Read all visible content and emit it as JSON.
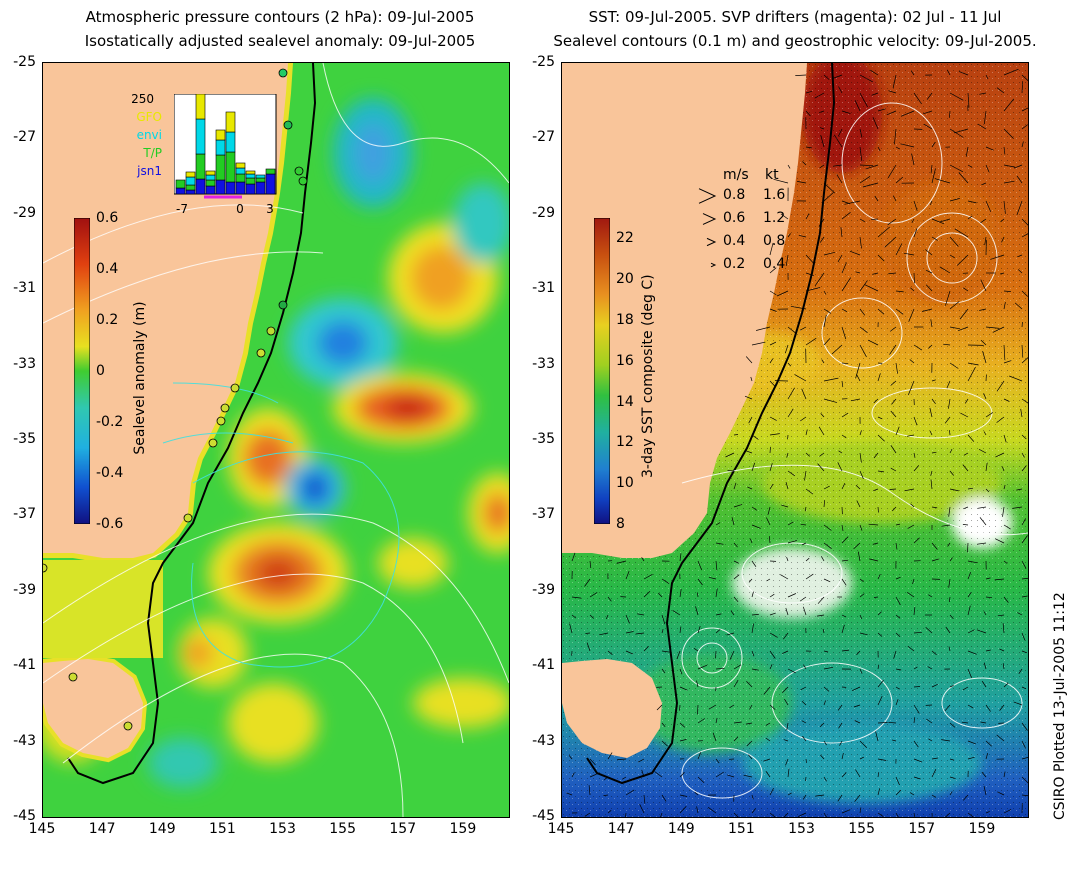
{
  "left_panel": {
    "title_line1": "Atmospheric pressure contours (2 hPa): 09-Jul-2005",
    "title_line2": "Isostatically adjusted sealevel anomaly: 09-Jul-2005",
    "colorbar": {
      "label": "Sealevel anomaly (m)",
      "ticks": [
        "0.6",
        "0.4",
        "0.2",
        "0",
        "-0.2",
        "-0.4",
        "-0.6"
      ],
      "range": [
        -0.6,
        0.6
      ]
    },
    "inset_histogram": {
      "count_label": "250",
      "missions": [
        {
          "name": "GFO",
          "color": "#e8e800"
        },
        {
          "name": "envi",
          "color": "#00d8e8"
        },
        {
          "name": "T/P",
          "color": "#22cc22"
        },
        {
          "name": "jsn1",
          "color": "#1010e0"
        }
      ],
      "x_ticks": [
        "-7",
        "0",
        "3"
      ],
      "bars": [
        {
          "GFO": 0,
          "envi": 0,
          "TP": 0.08,
          "jsn1": 0.06
        },
        {
          "GFO": 0.05,
          "envi": 0.08,
          "TP": 0.05,
          "jsn1": 0.04
        },
        {
          "GFO": 0.25,
          "envi": 0.35,
          "TP": 0.25,
          "jsn1": 0.15
        },
        {
          "GFO": 0.04,
          "envi": 0.05,
          "TP": 0.06,
          "jsn1": 0.08
        },
        {
          "GFO": 0.1,
          "envi": 0.15,
          "TP": 0.25,
          "jsn1": 0.14
        },
        {
          "GFO": 0.2,
          "envi": 0.2,
          "TP": 0.3,
          "jsn1": 0.12
        },
        {
          "GFO": 0.05,
          "envi": 0.06,
          "TP": 0.08,
          "jsn1": 0.12
        },
        {
          "GFO": 0.03,
          "envi": 0.04,
          "TP": 0.06,
          "jsn1": 0.1
        },
        {
          "GFO": 0,
          "envi": 0.03,
          "TP": 0.04,
          "jsn1": 0.12
        },
        {
          "GFO": 0,
          "envi": 0,
          "TP": 0.05,
          "jsn1": 0.2
        }
      ]
    }
  },
  "right_panel": {
    "title_line1": "SST: 09-Jul-2005. SVP drifters (magenta): 02 Jul - 11 Jul",
    "title_line2": "Sealevel contours (0.1 m) and geostrophic velocity: 09-Jul-2005.",
    "colorbar": {
      "label": "3-day SST composite (deg C)",
      "ticks": [
        "22",
        "20",
        "18",
        "16",
        "14",
        "12",
        "10",
        "8"
      ],
      "range": [
        8,
        23
      ]
    },
    "velocity_legend": {
      "header_ms": "m/s",
      "header_kt": "kt",
      "rows": [
        {
          "ms": "0.8",
          "kt": "1.6"
        },
        {
          "ms": "0.6",
          "kt": "1.2"
        },
        {
          "ms": "0.4",
          "kt": "0.8"
        },
        {
          "ms": "0.2",
          "kt": "0.4"
        }
      ]
    }
  },
  "axes": {
    "y_ticks": [
      "-25",
      "-27",
      "-29",
      "-31",
      "-33",
      "-35",
      "-37",
      "-39",
      "-41",
      "-43",
      "-45"
    ],
    "x_ticks": [
      "145",
      "147",
      "149",
      "151",
      "153",
      "155",
      "157",
      "159"
    ],
    "lon_range": [
      145,
      160.5
    ],
    "lat_range": [
      -45,
      -25
    ]
  },
  "credit": "CSIRO Plotted 13-Jul-2005 11:12",
  "colors": {
    "land": "#f9c59a",
    "coast_contour": "#000000"
  }
}
